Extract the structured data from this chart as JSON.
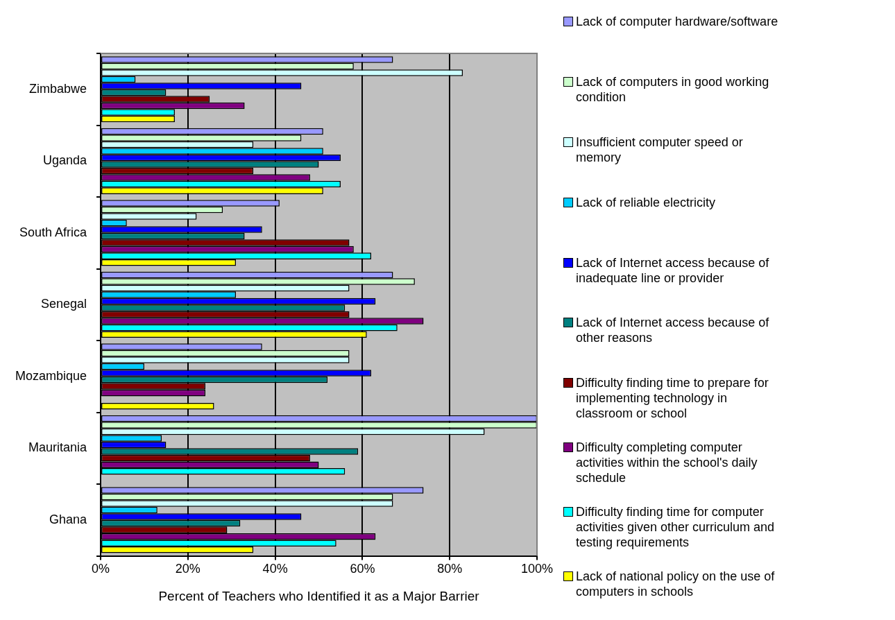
{
  "chart_data": {
    "type": "bar",
    "orientation": "horizontal",
    "xlabel": "Percent of Teachers who Identified it as a Major Barrier",
    "categories": [
      "Zimbabwe",
      "Uganda",
      "South Africa",
      "Senegal",
      "Mozambique",
      "Mauritania",
      "Ghana"
    ],
    "xlim": [
      0,
      100
    ],
    "xticks": [
      {
        "value": 0,
        "label": "0%"
      },
      {
        "value": 20,
        "label": "20%"
      },
      {
        "value": 40,
        "label": "40%"
      },
      {
        "value": 60,
        "label": "60%"
      },
      {
        "value": 80,
        "label": "80%"
      },
      {
        "value": 100,
        "label": "100%"
      }
    ],
    "grid": "x",
    "legend": "right",
    "series": [
      {
        "name": "Lack of computer hardware/software",
        "color": "#9999ff",
        "values": [
          67,
          51,
          41,
          67,
          37,
          100,
          74
        ]
      },
      {
        "name": "Lack of computers in good working condition",
        "color": "#ccffcc",
        "values": [
          58,
          46,
          28,
          72,
          57,
          100,
          67
        ]
      },
      {
        "name": "Insufficient computer speed or memory",
        "color": "#ccffff",
        "values": [
          83,
          35,
          22,
          57,
          57,
          88,
          67
        ]
      },
      {
        "name": "Lack of reliable electricity",
        "color": "#00ccff",
        "values": [
          8,
          51,
          6,
          31,
          10,
          14,
          13
        ]
      },
      {
        "name": "Lack of Internet access because of inadequate line or provider",
        "color": "#0000ff",
        "values": [
          46,
          55,
          37,
          63,
          62,
          15,
          46
        ]
      },
      {
        "name": "Lack of Internet access because of other reasons",
        "color": "#008080",
        "values": [
          15,
          50,
          33,
          56,
          52,
          59,
          32
        ]
      },
      {
        "name": "Difficulty finding time to prepare for implementing technology in classroom or school",
        "color": "#800000",
        "values": [
          25,
          35,
          57,
          57,
          24,
          48,
          29
        ]
      },
      {
        "name": "Difficulty completing computer activities within the school's daily schedule",
        "color": "#800080",
        "values": [
          33,
          48,
          58,
          74,
          24,
          50,
          63
        ]
      },
      {
        "name": "Difficulty finding time for computer activities given other curriculum and testing requirements",
        "color": "#00ffff",
        "values": [
          17,
          55,
          62,
          68,
          null,
          56,
          54
        ]
      },
      {
        "name": "Lack of national policy on the use of computers in schools",
        "color": "#ffff00",
        "values": [
          17,
          51,
          31,
          61,
          26,
          null,
          35
        ]
      }
    ]
  }
}
